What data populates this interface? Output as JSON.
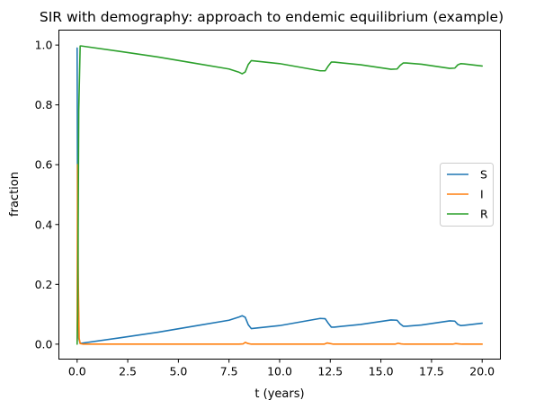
{
  "chart_data": {
    "type": "line",
    "title": "SIR with demography: approach to endemic equilibrium (example)",
    "xlabel": "t (years)",
    "ylabel": "fraction",
    "xlim": [
      -0.9,
      20.9
    ],
    "ylim": [
      -0.05,
      1.05
    ],
    "xticks": [
      0.0,
      2.5,
      5.0,
      7.5,
      10.0,
      12.5,
      15.0,
      17.5,
      20.0
    ],
    "xtick_labels": [
      "0.0",
      "2.5",
      "5.0",
      "7.5",
      "10.0",
      "12.5",
      "15.0",
      "17.5",
      "20.0"
    ],
    "yticks": [
      0.0,
      0.2,
      0.4,
      0.6,
      0.8,
      1.0
    ],
    "ytick_labels": [
      "0.0",
      "0.2",
      "0.4",
      "0.6",
      "0.8",
      "1.0"
    ],
    "grid": false,
    "legend_position": "center-right",
    "series": [
      {
        "name": "S",
        "color": "#1f77b4",
        "x": [
          0,
          0.03,
          0.08,
          0.15,
          0.2,
          2,
          4,
          6,
          7.5,
          8.0,
          8.15,
          8.3,
          8.45,
          8.6,
          10,
          12.0,
          12.25,
          12.4,
          12.55,
          12.7,
          14,
          15.5,
          15.8,
          15.95,
          16.1,
          16.25,
          17,
          18.4,
          18.65,
          18.8,
          18.95,
          19.1,
          20.0
        ],
        "y": [
          0.99,
          0.3,
          0.02,
          0.003,
          0.003,
          0.02,
          0.04,
          0.063,
          0.08,
          0.091,
          0.095,
          0.09,
          0.065,
          0.052,
          0.062,
          0.086,
          0.085,
          0.07,
          0.057,
          0.057,
          0.066,
          0.081,
          0.08,
          0.068,
          0.06,
          0.06,
          0.064,
          0.078,
          0.077,
          0.066,
          0.062,
          0.063,
          0.07
        ]
      },
      {
        "name": "I",
        "color": "#ff7f0e",
        "x": [
          0,
          0.02,
          0.06,
          0.1,
          0.15,
          0.3,
          8.0,
          8.2,
          8.3,
          8.45,
          8.6,
          12.2,
          12.35,
          12.5,
          12.65,
          15.7,
          15.85,
          16.0,
          16.15,
          18.55,
          18.7,
          18.85,
          19.0,
          20.0
        ],
        "y": [
          0.01,
          0.6,
          0.2,
          0.02,
          0.002,
          0.0,
          0.0,
          0.001,
          0.006,
          0.002,
          0.0,
          0.0,
          0.004,
          0.002,
          0.0,
          0.0,
          0.003,
          0.001,
          0.0,
          0.0,
          0.002,
          0.001,
          0.0,
          0.0
        ]
      },
      {
        "name": "R",
        "color": "#2ca02c",
        "x": [
          0,
          0.03,
          0.08,
          0.15,
          0.2,
          2,
          4,
          6,
          7.5,
          8.0,
          8.15,
          8.3,
          8.45,
          8.6,
          10,
          12.0,
          12.25,
          12.4,
          12.55,
          12.7,
          14,
          15.5,
          15.8,
          15.95,
          16.1,
          16.25,
          17,
          18.4,
          18.65,
          18.8,
          18.95,
          19.1,
          20.0
        ],
        "y": [
          0.0,
          0.1,
          0.78,
          0.997,
          0.997,
          0.98,
          0.96,
          0.937,
          0.92,
          0.909,
          0.904,
          0.91,
          0.935,
          0.948,
          0.938,
          0.914,
          0.914,
          0.93,
          0.943,
          0.943,
          0.934,
          0.919,
          0.92,
          0.932,
          0.94,
          0.94,
          0.936,
          0.922,
          0.923,
          0.934,
          0.938,
          0.937,
          0.93
        ]
      }
    ]
  }
}
